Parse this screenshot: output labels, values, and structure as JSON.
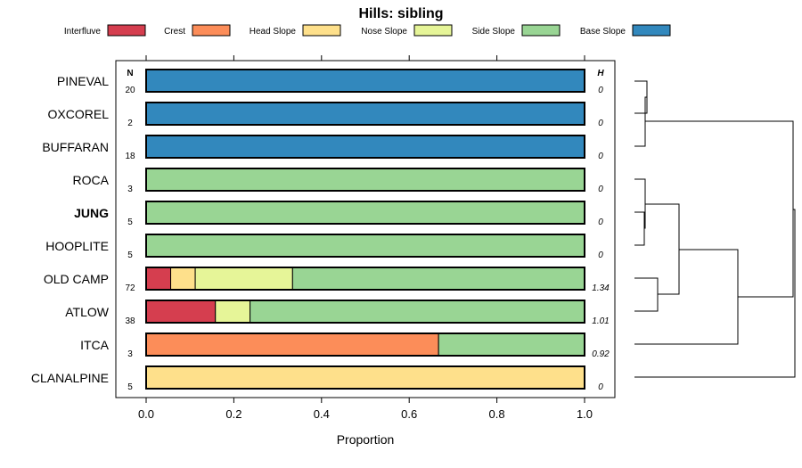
{
  "chart_data": {
    "type": "bar",
    "orientation": "horizontal",
    "stacked": true,
    "title": "Hills: sibling",
    "xlabel": "Proportion",
    "ylabel": "",
    "xlim": [
      0,
      1
    ],
    "xticks": [
      "0.0",
      "0.2",
      "0.4",
      "0.6",
      "0.8",
      "1.0"
    ],
    "n_header": "N",
    "h_header": "H",
    "legend": [
      {
        "name": "Interfluve",
        "color": "#d53e4f"
      },
      {
        "name": "Crest",
        "color": "#fc8d59"
      },
      {
        "name": "Head Slope",
        "color": "#fee08b"
      },
      {
        "name": "Nose Slope",
        "color": "#e6f598"
      },
      {
        "name": "Side Slope",
        "color": "#99d594"
      },
      {
        "name": "Base Slope",
        "color": "#3288bd"
      }
    ],
    "rows": [
      {
        "label": "PINEVAL",
        "bold": false,
        "n": "20",
        "h": "0",
        "values": [
          0,
          0,
          0,
          0,
          0,
          1
        ]
      },
      {
        "label": "OXCOREL",
        "bold": false,
        "n": "2",
        "h": "0",
        "values": [
          0,
          0,
          0,
          0,
          0,
          1
        ]
      },
      {
        "label": "BUFFARAN",
        "bold": false,
        "n": "18",
        "h": "0",
        "values": [
          0,
          0,
          0,
          0,
          0,
          1
        ]
      },
      {
        "label": "ROCA",
        "bold": false,
        "n": "3",
        "h": "0",
        "values": [
          0,
          0,
          0,
          0,
          1,
          0
        ]
      },
      {
        "label": "JUNG",
        "bold": true,
        "n": "5",
        "h": "0",
        "values": [
          0,
          0,
          0,
          0,
          1,
          0
        ]
      },
      {
        "label": "HOOPLITE",
        "bold": false,
        "n": "5",
        "h": "0",
        "values": [
          0,
          0,
          0,
          0,
          1,
          0
        ]
      },
      {
        "label": "OLD CAMP",
        "bold": false,
        "n": "72",
        "h": "1.34",
        "values": [
          0.056,
          0,
          0.056,
          0.222,
          0.666,
          0
        ]
      },
      {
        "label": "ATLOW",
        "bold": false,
        "n": "38",
        "h": "1.01",
        "values": [
          0.158,
          0,
          0,
          0.079,
          0.763,
          0
        ]
      },
      {
        "label": "ITCA",
        "bold": false,
        "n": "3",
        "h": "0.92",
        "values": [
          0,
          0.667,
          0,
          0,
          0.333,
          0
        ]
      },
      {
        "label": "CLANALPINE",
        "bold": false,
        "n": "5",
        "h": "0",
        "values": [
          0,
          0,
          1,
          0,
          0,
          0
        ]
      }
    ]
  }
}
